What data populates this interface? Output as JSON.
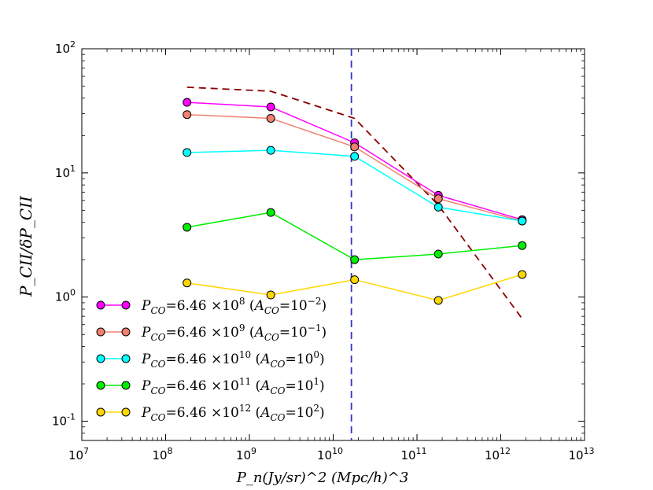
{
  "chart_data": {
    "type": "line",
    "xscale": "log",
    "yscale": "log",
    "xlim": [
      10000000,
      10000000000000
    ],
    "ylim": [
      0.07,
      100
    ],
    "x": [
      180000000,
      1800000000,
      18000000000,
      180000000000,
      1800000000000
    ],
    "series": [
      {
        "name": "P_CO=6.46x10^8 (A_CO=10^-2)",
        "color": "#ff00ff",
        "values": [
          37,
          34,
          17.5,
          6.6,
          4.2
        ]
      },
      {
        "name": "P_CO=6.46x10^9 (A_CO=10^-1)",
        "color": "#f08070",
        "values": [
          29.5,
          27.5,
          16.2,
          6.2,
          4.1
        ]
      },
      {
        "name": "P_CO=6.46x10^10 (A_CO=10^0)",
        "color": "#00ffff",
        "values": [
          14.6,
          15.2,
          13.6,
          5.3,
          4.1
        ]
      },
      {
        "name": "P_CO=6.46x10^11 (A_CO=10^1)",
        "color": "#00ee00",
        "values": [
          3.65,
          4.8,
          2.0,
          2.22,
          2.6
        ]
      },
      {
        "name": "P_CO=6.46x10^12 (A_CO=10^2)",
        "color": "#ffd700",
        "values": [
          1.3,
          1.04,
          1.38,
          0.94,
          1.52
        ]
      }
    ],
    "reference_line": {
      "style": "dashed",
      "color": "#8b0000",
      "x": [
        180000000,
        1800000000,
        18000000000,
        180000000000,
        1800000000000
      ],
      "values": [
        49,
        45.5,
        27.5,
        5.5,
        0.67
      ]
    },
    "vertical_line": {
      "style": "dashed",
      "color": "#3333cc",
      "x": 16500000000
    },
    "xticks": [
      {
        "value": 10000000,
        "base": "10",
        "exp": "7"
      },
      {
        "value": 100000000,
        "base": "10",
        "exp": "8"
      },
      {
        "value": 1000000000,
        "base": "10",
        "exp": "9"
      },
      {
        "value": 10000000000,
        "base": "10",
        "exp": "10"
      },
      {
        "value": 100000000000,
        "base": "10",
        "exp": "11"
      },
      {
        "value": 1000000000000,
        "base": "10",
        "exp": "12"
      },
      {
        "value": 10000000000000,
        "base": "10",
        "exp": "13"
      }
    ],
    "yticks": [
      {
        "value": 0.1,
        "base": "10",
        "exp": "-1"
      },
      {
        "value": 1,
        "base": "10",
        "exp": "0"
      },
      {
        "value": 10,
        "base": "10",
        "exp": "1"
      },
      {
        "value": 100,
        "base": "10",
        "exp": "2"
      }
    ],
    "xlabel": {
      "text": "P_n(Jy/sr)^2 (Mpc/h)^3"
    },
    "ylabel": {
      "text": "P_CII/δP_CII"
    },
    "legend_position": "lower-left",
    "legend": [
      {
        "p_sub": "CO",
        "mant": "6.46",
        "pexp": "8",
        "a_sub": "CO",
        "aexp": "−2"
      },
      {
        "p_sub": "CO",
        "mant": "6.46",
        "pexp": "9",
        "a_sub": "CO",
        "aexp": "−1"
      },
      {
        "p_sub": "CO",
        "mant": "6.46",
        "pexp": "10",
        "a_sub": "CO",
        "aexp": "0"
      },
      {
        "p_sub": "CO",
        "mant": "6.46",
        "pexp": "11",
        "a_sub": "CO",
        "aexp": "1"
      },
      {
        "p_sub": "CO",
        "mant": "6.46",
        "pexp": "12",
        "a_sub": "CO",
        "aexp": "2"
      }
    ]
  }
}
